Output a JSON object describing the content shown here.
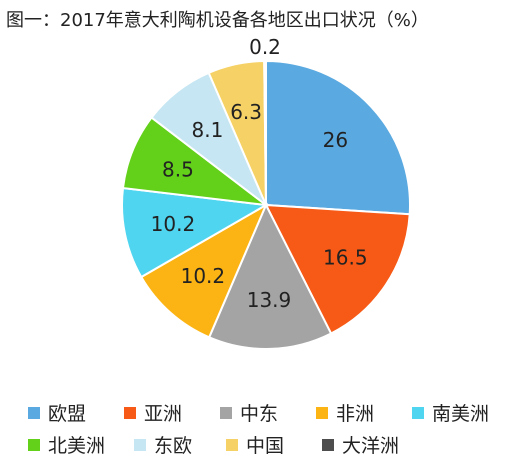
{
  "chart_data": {
    "type": "pie",
    "title": "图一：2017年意大利陶机设备各地区出口状况（%）",
    "slices": [
      {
        "name": "欧盟",
        "value": 26,
        "label": "26",
        "color": "#5aa9e0"
      },
      {
        "name": "亚洲",
        "value": 16.5,
        "label": "16.5",
        "color": "#f75a16"
      },
      {
        "name": "中东",
        "value": 13.9,
        "label": "13.9",
        "color": "#a4a4a4"
      },
      {
        "name": "非洲",
        "value": 10.2,
        "label": "10.2",
        "color": "#fbb414"
      },
      {
        "name": "南美洲",
        "value": 10.2,
        "label": "10.2",
        "color": "#4fd5ef"
      },
      {
        "name": "北美洲",
        "value": 8.5,
        "label": "8.5",
        "color": "#63d01a"
      },
      {
        "name": "东欧",
        "value": 8.1,
        "label": "8.1",
        "color": "#c5e6f2"
      },
      {
        "name": "中国",
        "value": 6.3,
        "label": "6.3",
        "color": "#f6d165"
      },
      {
        "name": "大洋洲",
        "value": 0.2,
        "label": "0.2",
        "color": "#4d4d4d"
      }
    ],
    "legend_position": "bottom"
  }
}
